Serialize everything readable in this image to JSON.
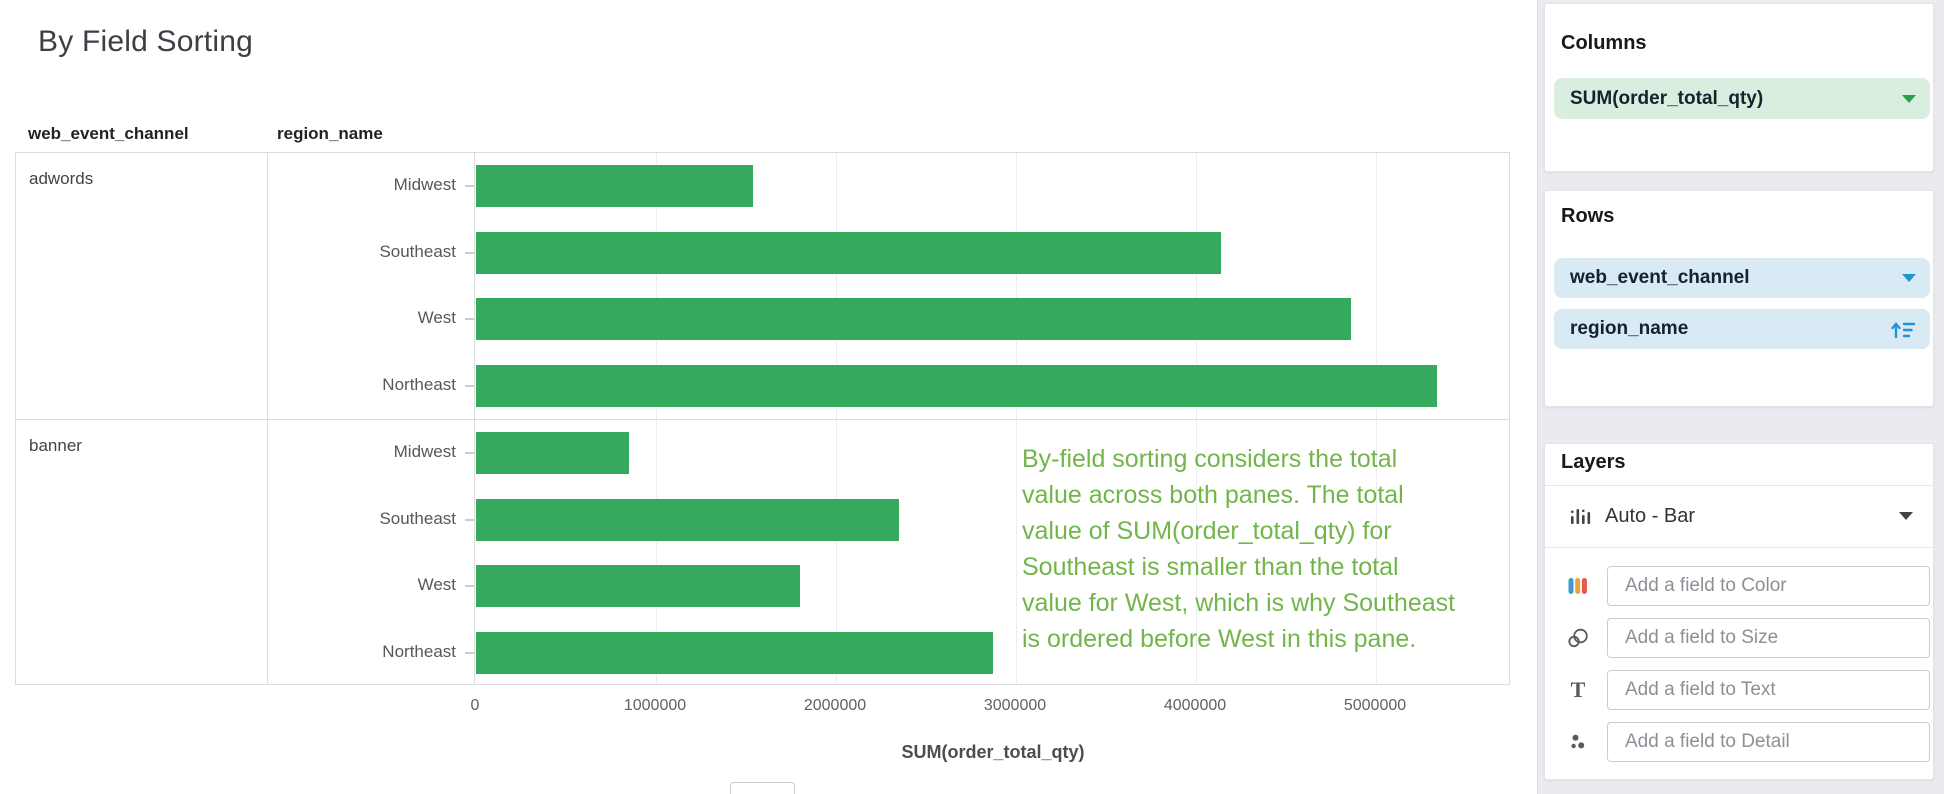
{
  "title": "By Field Sorting",
  "chart_data": {
    "type": "bar",
    "orientation": "horizontal",
    "row_dimensions": [
      "web_event_channel",
      "region_name"
    ],
    "xlabel": "SUM(order_total_qty)",
    "x_tick_labels": [
      "0",
      "1000000",
      "2000000",
      "3000000",
      "4000000",
      "5000000"
    ],
    "x_tick_values": [
      0,
      1000000,
      2000000,
      3000000,
      4000000,
      5000000
    ],
    "xlim": [
      0,
      5750000
    ],
    "grid": true,
    "bar_color": "#35a95c",
    "panes": [
      {
        "web_event_channel": "adwords",
        "categories": [
          "Midwest",
          "Southeast",
          "West",
          "Northeast"
        ],
        "values": [
          1540000,
          4140000,
          4860000,
          5340000
        ]
      },
      {
        "web_event_channel": "banner",
        "categories": [
          "Midwest",
          "Southeast",
          "West",
          "Northeast"
        ],
        "values": [
          850000,
          2350000,
          1800000,
          2870000
        ]
      }
    ],
    "annotation": {
      "color": "#72b54a",
      "lines": [
        "By-field sorting considers the total",
        "value across both panes. The total",
        "value of SUM(order_total_qty) for",
        "Southeast is smaller than the total",
        "value for West, which is why Southeast",
        "is ordered before West in this pane."
      ],
      "text": "By-field sorting considers the total value across both panes. The total value of SUM(order_total_qty) for Southeast is smaller than the total value for West, which is why Southeast is ordered before West in this pane."
    }
  },
  "sidebar": {
    "columns_panel": {
      "heading": "Columns",
      "pill": {
        "label": "SUM(order_total_qty)"
      }
    },
    "rows_panel": {
      "heading": "Rows",
      "pills": [
        {
          "label": "web_event_channel",
          "trailing_icon": "chevron-down-icon"
        },
        {
          "label": "region_name",
          "trailing_icon": "sort-ascending-icon"
        }
      ]
    },
    "layers_panel": {
      "heading": "Layers",
      "layer_label": "Auto - Bar",
      "wells": [
        {
          "icon": "color-icon",
          "placeholder": "Add a field to Color"
        },
        {
          "icon": "size-icon",
          "placeholder": "Add a field to Size"
        },
        {
          "icon": "text-icon",
          "placeholder": "Add a field to Text"
        },
        {
          "icon": "detail-icon",
          "placeholder": "Add a field to Detail"
        }
      ]
    }
  },
  "colors": {
    "bar_green": "#35a95c",
    "annotation_green": "#72b54a",
    "measure_pill_bg": "#d9eedf",
    "measure_accent": "#2d9e4f",
    "dimension_pill_bg": "#d9eaf5",
    "dimension_accent": "#2095d5",
    "sidebar_bg": "#e9ebf0"
  }
}
